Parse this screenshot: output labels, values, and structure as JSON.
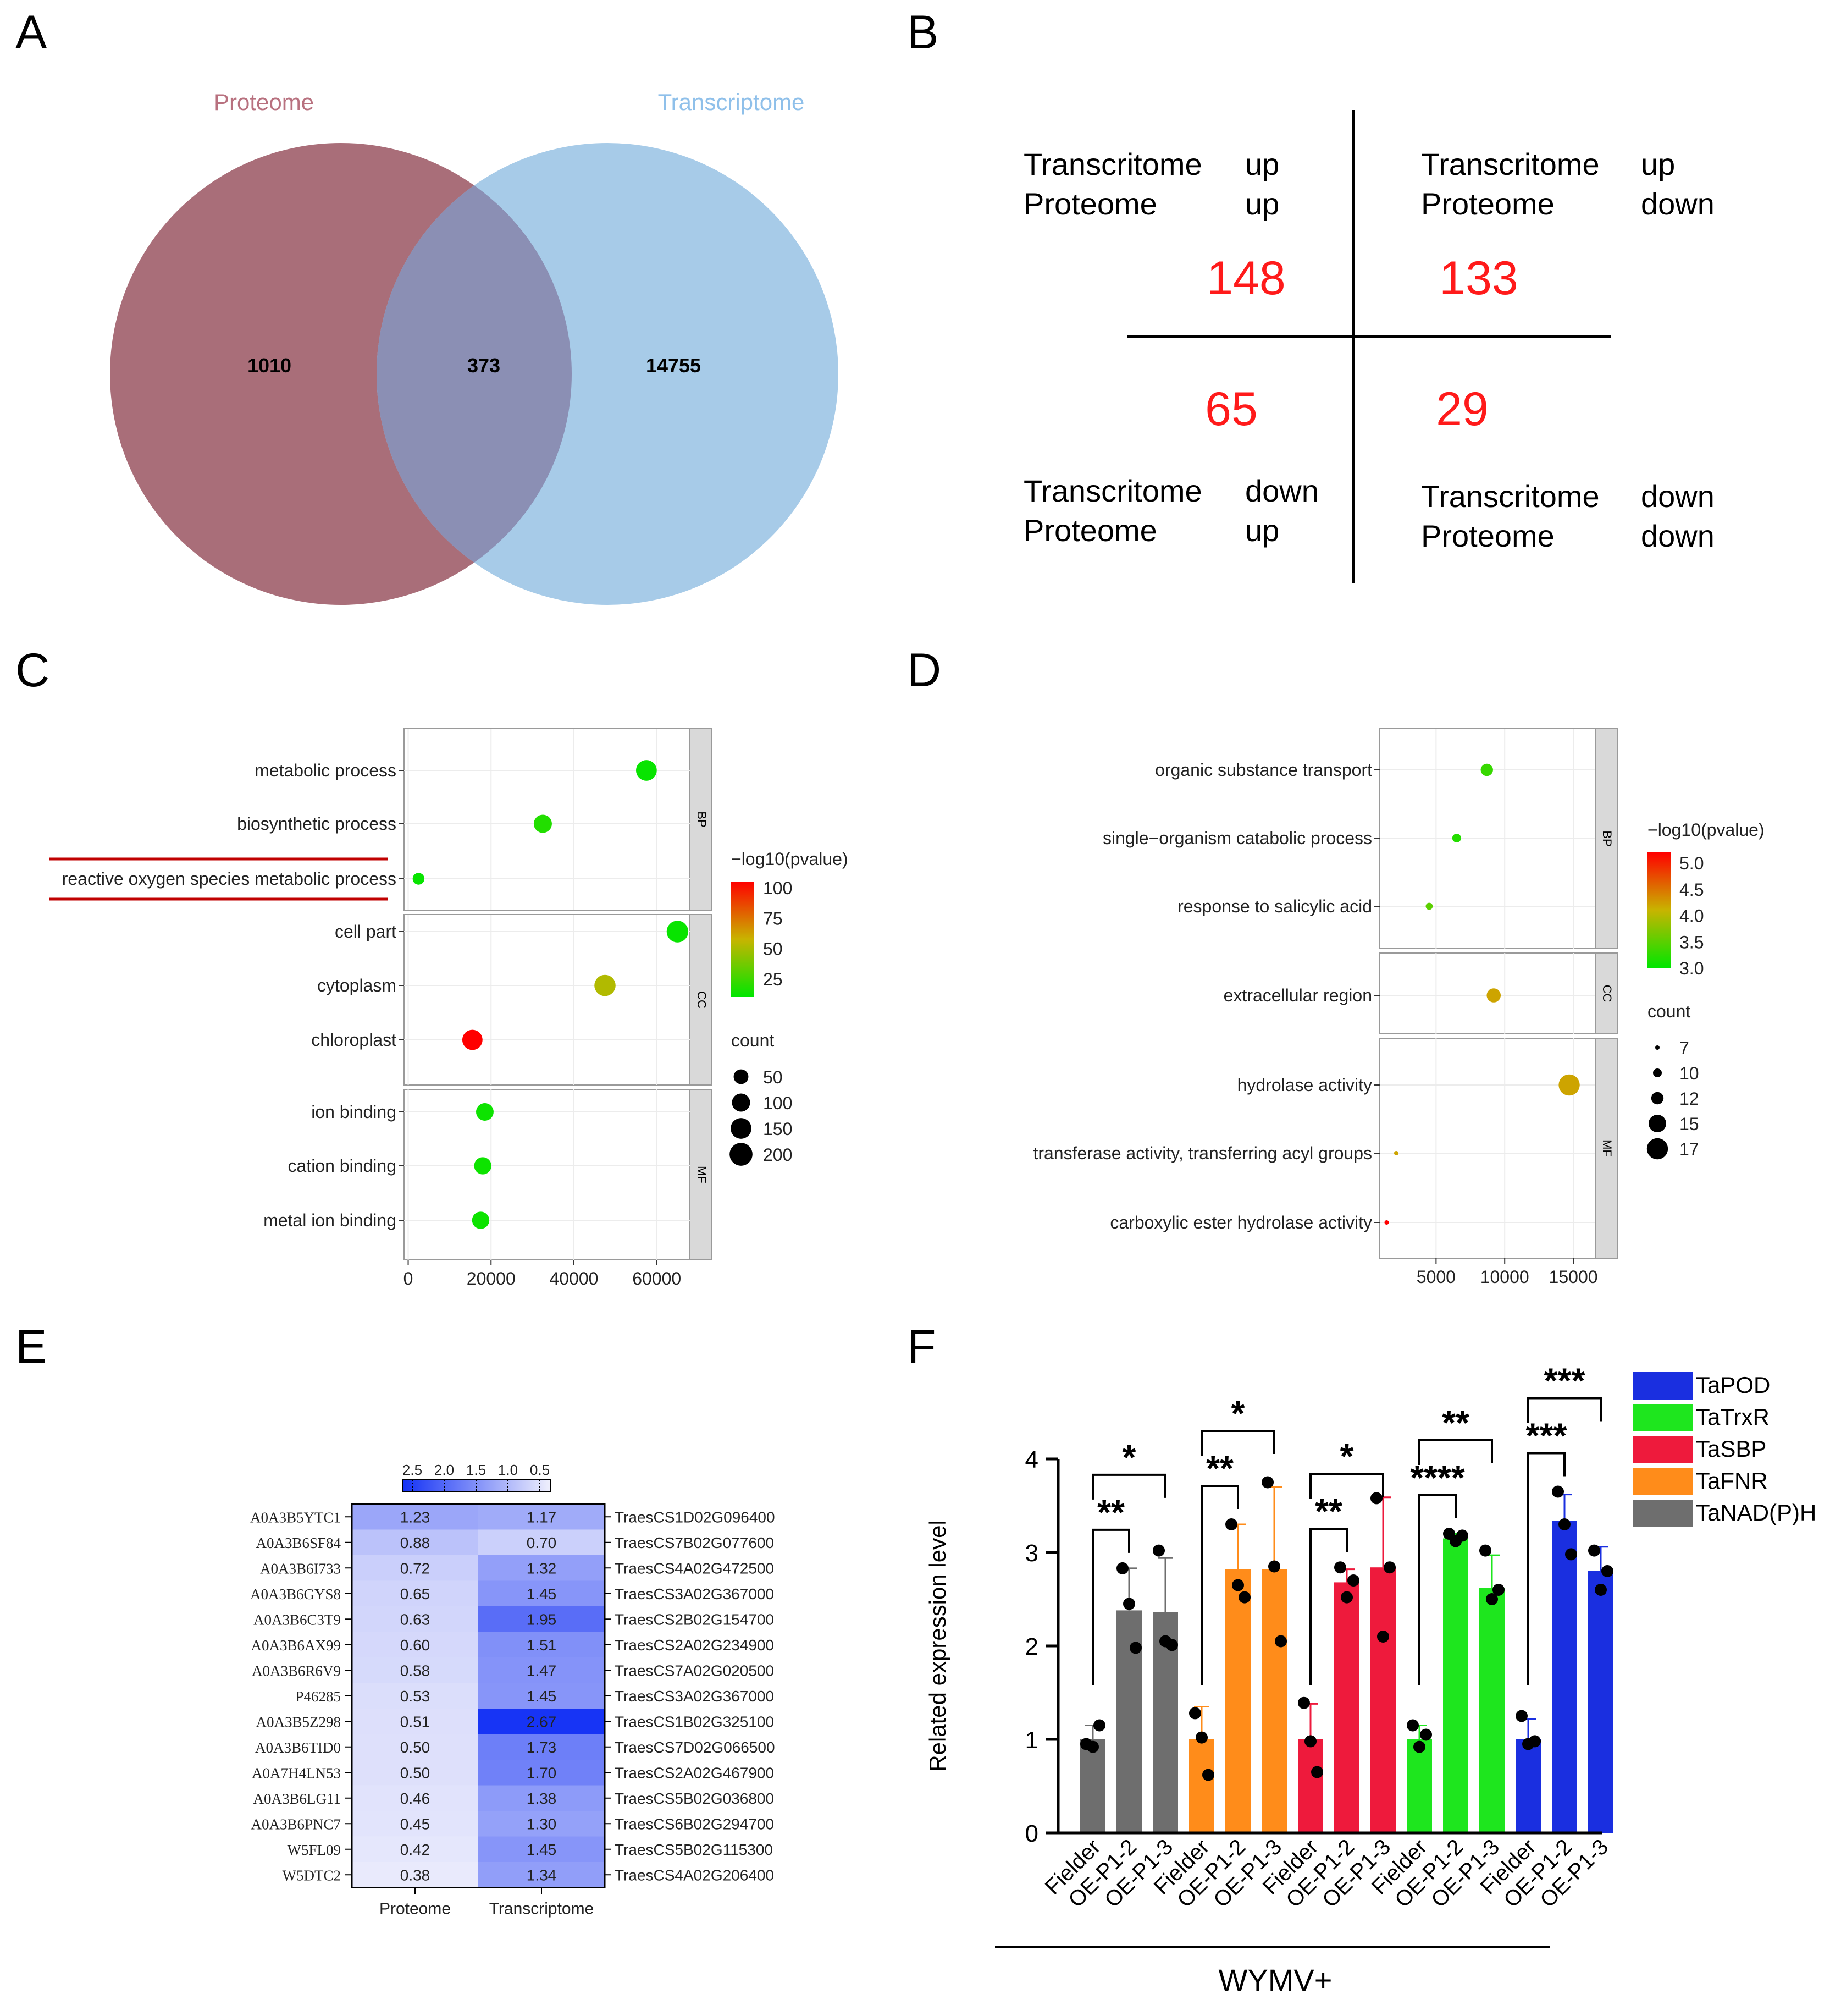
{
  "panels": {
    "A": "A",
    "B": "B",
    "C": "C",
    "D": "D",
    "E": "E",
    "F": "F"
  },
  "colors": {
    "proteome": "#a96e79",
    "transcriptome": "#a7cbe8",
    "overlap": "#8b8fb4",
    "red": "#ff1a1a",
    "teal": "#b7c8dc"
  },
  "chart_data": [
    {
      "id": "A",
      "type": "venn",
      "sets": [
        {
          "name": "Proteome",
          "only": 1010
        },
        {
          "name": "Transcriptome",
          "only": 14755
        }
      ],
      "overlap": 373
    },
    {
      "id": "B",
      "type": "table",
      "quadrants": [
        {
          "l1": "Transcritome",
          "v1": "up",
          "l2": "Proteome",
          "v2": "up",
          "n": "148"
        },
        {
          "l1": "Transcritome",
          "v1": "up",
          "l2": "Proteome",
          "v2": "down",
          "n": "133"
        },
        {
          "l1": "Transcritome",
          "v1": "down",
          "l2": "Proteome",
          "v2": "up",
          "n": "65"
        },
        {
          "l1": "Transcritome",
          "v1": "down",
          "l2": "Proteome",
          "v2": "down",
          "n": "29"
        }
      ]
    },
    {
      "id": "C",
      "type": "scatter",
      "facets": [
        "BP",
        "CC",
        "MF"
      ],
      "terms": [
        {
          "label": "metabolic process",
          "facet": "BP",
          "x": 57500,
          "p": 12,
          "count": 150
        },
        {
          "label": "biosynthetic process",
          "facet": "BP",
          "x": 32500,
          "p": 18,
          "count": 100
        },
        {
          "label": "reactive oxygen species metabolic process",
          "facet": "BP",
          "x": 2500,
          "p": 12,
          "count": 20
        },
        {
          "label": "cell part",
          "facet": "CC",
          "x": 65000,
          "p": 12,
          "count": 170
        },
        {
          "label": "cytoplasm",
          "facet": "CC",
          "x": 47500,
          "p": 52,
          "count": 160
        },
        {
          "label": "chloroplast",
          "facet": "CC",
          "x": 15500,
          "p": 105,
          "count": 140
        },
        {
          "label": "ion binding",
          "facet": "MF",
          "x": 18500,
          "p": 13,
          "count": 90
        },
        {
          "label": "cation binding",
          "facet": "MF",
          "x": 18000,
          "p": 13,
          "count": 85
        },
        {
          "label": "metal ion binding",
          "facet": "MF",
          "x": 17500,
          "p": 13,
          "count": 85
        }
      ],
      "xticks": [
        "0",
        "20000",
        "40000",
        "60000"
      ],
      "xlim": [
        -1000,
        68000
      ],
      "color_title": "−log10(pvalue)",
      "color_ticks": [
        "100",
        "75",
        "50",
        "25"
      ],
      "color_range": [
        10,
        105
      ],
      "size_title": "count",
      "size_ticks": [
        "50",
        "100",
        "150",
        "200"
      ]
    },
    {
      "id": "D",
      "type": "scatter",
      "facets": [
        "BP",
        "CC",
        "MF"
      ],
      "terms": [
        {
          "label": "organic substance transport",
          "facet": "BP",
          "x": 8700,
          "p": 3.3,
          "count": 12
        },
        {
          "label": "single−organism catabolic process",
          "facet": "BP",
          "x": 6500,
          "p": 3.2,
          "count": 10
        },
        {
          "label": "response to salicylic acid",
          "facet": "BP",
          "x": 4500,
          "p": 3.5,
          "count": 9
        },
        {
          "label": "extracellular region",
          "facet": "CC",
          "x": 9200,
          "p": 4.2,
          "count": 13
        },
        {
          "label": "hydrolase activity",
          "facet": "MF",
          "x": 14700,
          "p": 4.2,
          "count": 17
        },
        {
          "label": "transferase activity, transferring acyl groups",
          "facet": "MF",
          "x": 2100,
          "p": 4.2,
          "count": 7
        },
        {
          "label": "carboxylic ester hydrolase activity",
          "facet": "MF",
          "x": 1400,
          "p": 5.2,
          "count": 7
        }
      ],
      "xticks": [
        "5000",
        "10000",
        "15000"
      ],
      "xlim": [
        900,
        16600
      ],
      "color_title": "−log10(pvalue)",
      "color_ticks": [
        "5.0",
        "4.5",
        "4.0",
        "3.5",
        "3.0"
      ],
      "color_range": [
        3.0,
        5.2
      ],
      "size_title": "count",
      "size_ticks": [
        "7",
        "10",
        "12",
        "15",
        "17"
      ]
    },
    {
      "id": "E",
      "type": "heatmap",
      "columns": [
        "Proteome",
        "Transcriptome"
      ],
      "legend_ticks": [
        "2.5",
        "2.0",
        "1.5",
        "1.0",
        "0.5"
      ],
      "rows": [
        {
          "protein": "A0A3B5YTC1",
          "p": 1.23,
          "t": 1.17,
          "gene": "TraesCS1D02G096400"
        },
        {
          "protein": "A0A3B6SF84",
          "p": 0.88,
          "t": 0.7,
          "gene": "TraesCS7B02G077600"
        },
        {
          "protein": "A0A3B6I733",
          "p": 0.72,
          "t": 1.32,
          "gene": "TraesCS4A02G472500"
        },
        {
          "protein": "A0A3B6GYS8",
          "p": 0.65,
          "t": 1.45,
          "gene": "TraesCS3A02G367000"
        },
        {
          "protein": "A0A3B6C3T9",
          "p": 0.63,
          "t": 1.95,
          "gene": "TraesCS2B02G154700"
        },
        {
          "protein": "A0A3B6AX99",
          "p": 0.6,
          "t": 1.51,
          "gene": "TraesCS2A02G234900"
        },
        {
          "protein": "A0A3B6R6V9",
          "p": 0.58,
          "t": 1.47,
          "gene": "TraesCS7A02G020500"
        },
        {
          "protein": "P46285",
          "p": 0.53,
          "t": 1.45,
          "gene": "TraesCS3A02G367000"
        },
        {
          "protein": "A0A3B5Z298",
          "p": 0.51,
          "t": 2.67,
          "gene": "TraesCS1B02G325100"
        },
        {
          "protein": "A0A3B6TID0",
          "p": 0.5,
          "t": 1.73,
          "gene": "TraesCS7D02G066500"
        },
        {
          "protein": "A0A7H4LN53",
          "p": 0.5,
          "t": 1.7,
          "gene": "TraesCS2A02G467900"
        },
        {
          "protein": "A0A3B6LG11",
          "p": 0.46,
          "t": 1.38,
          "gene": "TraesCS5B02G036800"
        },
        {
          "protein": "A0A3B6PNC7",
          "p": 0.45,
          "t": 1.3,
          "gene": "TraesCS6B02G294700"
        },
        {
          "protein": "W5FL09",
          "p": 0.42,
          "t": 1.45,
          "gene": "TraesCS5B02G115300"
        },
        {
          "protein": "W5DTC2",
          "p": 0.38,
          "t": 1.34,
          "gene": "TraesCS4A02G206400"
        }
      ]
    },
    {
      "id": "F",
      "type": "bar",
      "ylabel": "Related expression level",
      "ylim": [
        0,
        4
      ],
      "yticks": [
        "0",
        "1",
        "2",
        "3",
        "4"
      ],
      "xlabel": "WYMV+",
      "groups": [
        {
          "name": "TaNAD(P)H",
          "color": "#6e6e6e",
          "labels": [
            "Fielder",
            "OE-P1-2",
            "OE-P1-3"
          ],
          "values": [
            1.0,
            2.38,
            2.36
          ],
          "errors": [
            0.15,
            0.45,
            0.58
          ],
          "points": [
            [
              0.95,
              0.92,
              1.15
            ],
            [
              2.83,
              2.45,
              1.98
            ],
            [
              3.02,
              2.05,
              2.01
            ]
          ],
          "sig1": "**",
          "sig2": "*"
        },
        {
          "name": "TaFNR",
          "color": "#ff8c1a",
          "labels": [
            "Fielder",
            "OE-P1-2",
            "OE-P1-3"
          ],
          "values": [
            1.0,
            2.82,
            2.82
          ],
          "errors": [
            0.35,
            0.48,
            0.88
          ],
          "points": [
            [
              1.28,
              1.02,
              0.62
            ],
            [
              3.3,
              2.65,
              2.52
            ],
            [
              3.75,
              2.85,
              2.05
            ]
          ],
          "sig1": "**",
          "sig2": "*"
        },
        {
          "name": "TaSBP",
          "color": "#ee1a3c",
          "labels": [
            "Fielder",
            "OE-P1-2",
            "OE-P1-3"
          ],
          "values": [
            1.0,
            2.68,
            2.84
          ],
          "errors": [
            0.38,
            0.14,
            0.75
          ],
          "points": [
            [
              1.39,
              0.98,
              0.65
            ],
            [
              2.84,
              2.52,
              2.7
            ],
            [
              3.58,
              2.1,
              2.84
            ]
          ],
          "sig1": "**",
          "sig2": "*"
        },
        {
          "name": "TaTrxR",
          "color": "#1ee61e",
          "labels": [
            "Fielder",
            "OE-P1-2",
            "OE-P1-3"
          ],
          "values": [
            1.0,
            3.15,
            2.62
          ],
          "errors": [
            0.15,
            0.05,
            0.35
          ],
          "points": [
            [
              1.15,
              0.92,
              1.05
            ],
            [
              3.2,
              3.12,
              3.18
            ],
            [
              3.02,
              2.5,
              2.6
            ]
          ],
          "sig1": "****",
          "sig2": "**"
        },
        {
          "name": "TaPOD",
          "color": "#1a2fe0",
          "labels": [
            "Fielder",
            "OE-P1-2",
            "OE-P1-3"
          ],
          "values": [
            1.0,
            3.34,
            2.8
          ],
          "errors": [
            0.22,
            0.28,
            0.26
          ],
          "points": [
            [
              1.25,
              0.95,
              0.98
            ],
            [
              3.65,
              3.3,
              2.98
            ],
            [
              3.02,
              2.6,
              2.8
            ]
          ],
          "sig1": "***",
          "sig2": "***"
        }
      ],
      "legend": [
        "TaPOD",
        "TaTrxR",
        "TaSBP",
        "TaFNR",
        "TaNAD(P)H"
      ]
    }
  ]
}
